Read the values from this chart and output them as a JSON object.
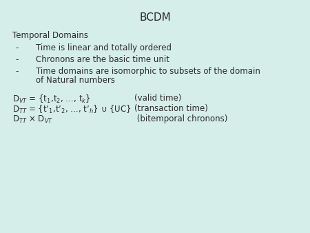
{
  "title": "BCDM",
  "background_color": "#d6eeea",
  "text_color": "#2a2a2a",
  "title_fontsize": 11,
  "body_fontsize": 8.5,
  "heading": "Temporal Domains",
  "bullet_dash": "-",
  "bullets": [
    "Time is linear and totally ordered",
    "Chronons are the basic time unit",
    "Time domains are isomorphic to subsets of the domain"
  ],
  "bullet3_line2": "        of Natural numbers",
  "formulas_left": [
    "D$_{VT}$ = {t$_{1}$,t$_{2}$, …, t$_{k}$}",
    "D$_{TT}$ = {t’$_{1}$,t’$_{2}$, …, t’$_{h}$} ∪ {UC}",
    "D$_{TT}$ × D$_{VT}$"
  ],
  "formulas_right": [
    "(valid time)",
    "(transaction time)",
    " (bitemporal chronons)"
  ]
}
